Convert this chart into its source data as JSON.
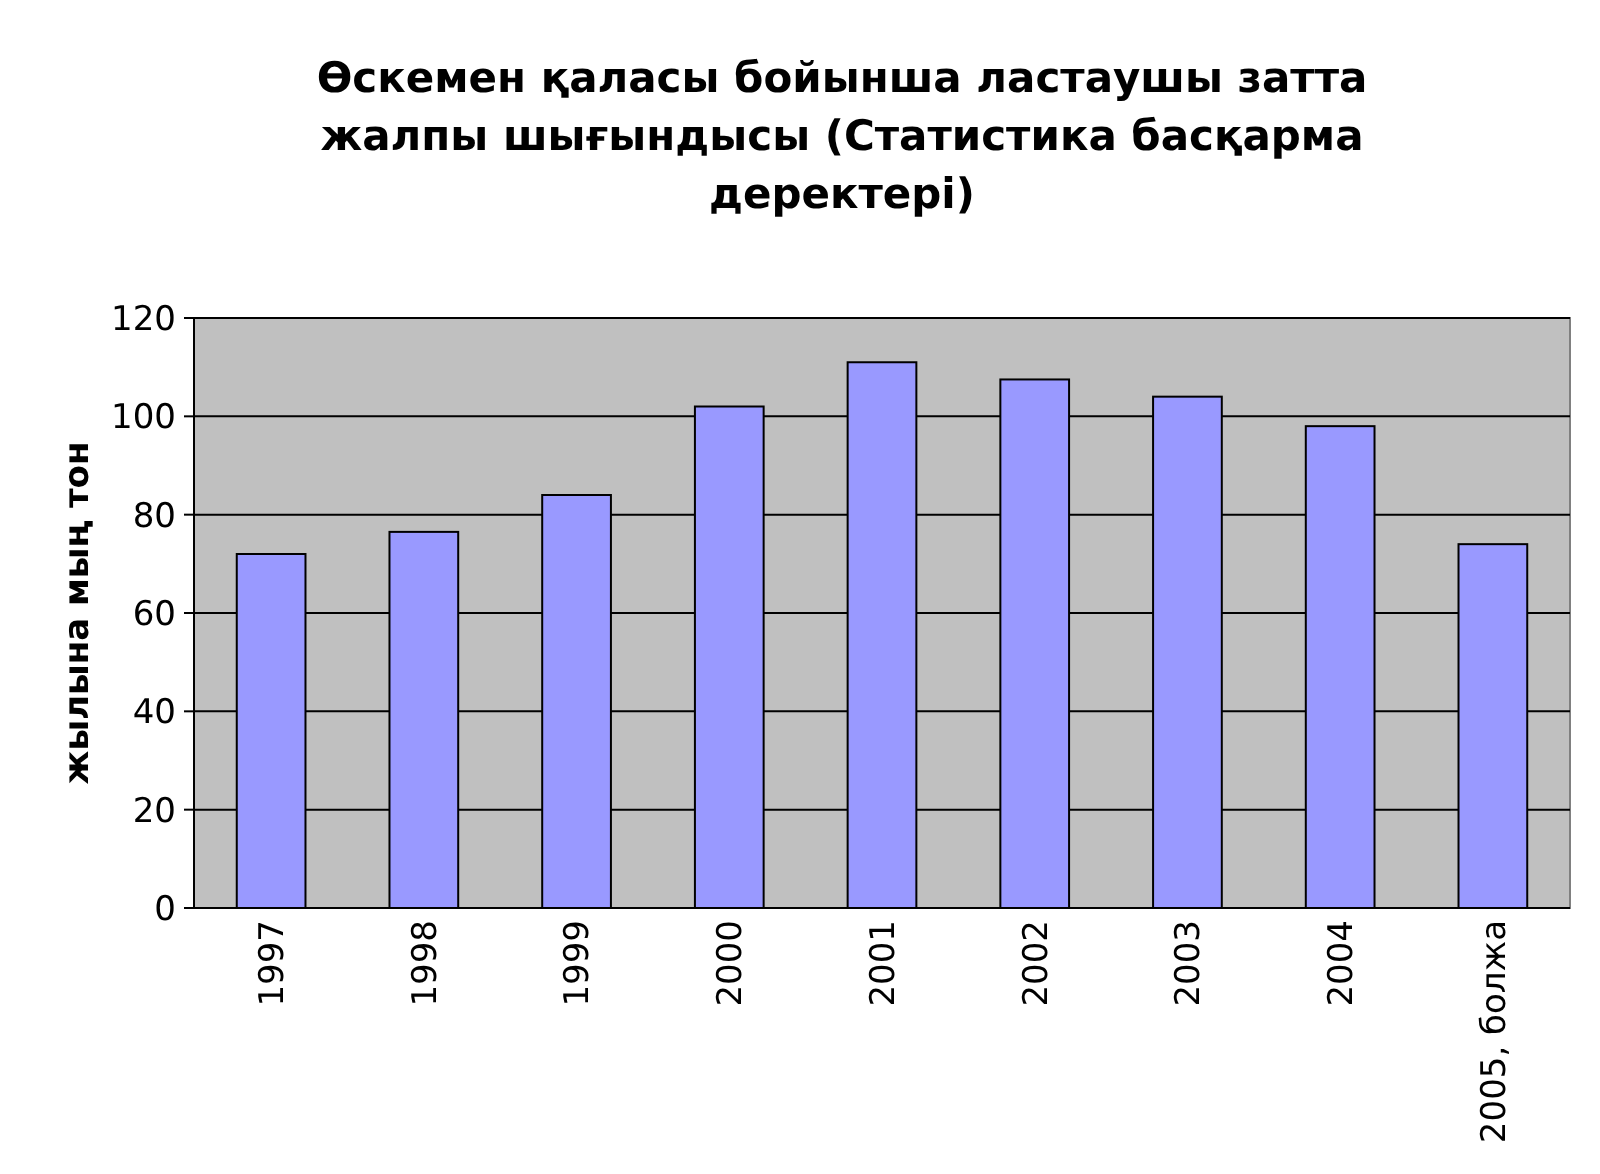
{
  "chart_data": {
    "type": "bar",
    "title": "Өскемен қаласы бойынша ластаушы затта жалпы шығындысы (Статистика басқарма деректері)",
    "ylabel": "жылына мың тон",
    "categories": [
      "1997",
      "1998",
      "1999",
      "2000",
      "2001",
      "2002",
      "2003",
      "2004",
      "2005, болжа"
    ],
    "values": [
      72,
      76.5,
      84,
      102,
      111,
      107.5,
      104,
      98,
      74
    ],
    "color": "#9999ff",
    "ylim": [
      0,
      120
    ],
    "yticks": [
      0,
      20,
      40,
      60,
      80,
      100,
      120
    ],
    "grid": "y"
  }
}
